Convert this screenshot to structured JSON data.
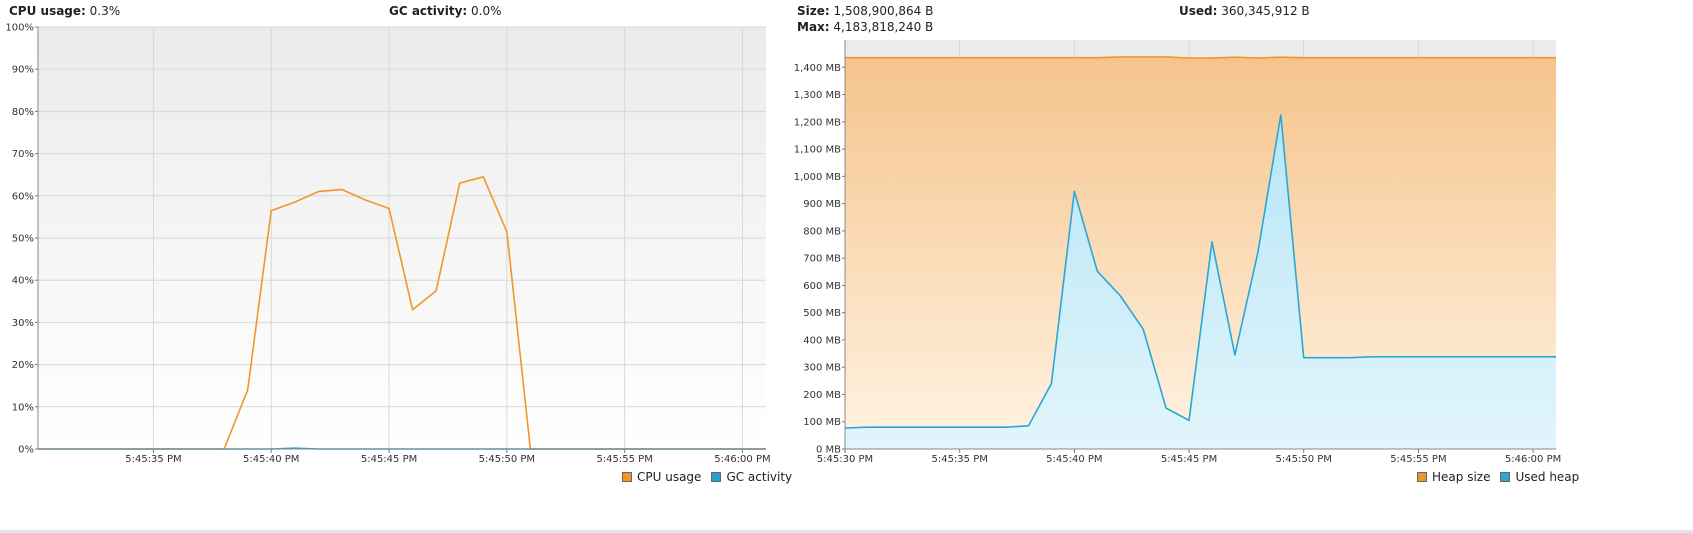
{
  "cpu_panel": {
    "cpu_label": "CPU usage:",
    "cpu_value": "0.3%",
    "gc_label": "GC activity:",
    "gc_value": "0.0%",
    "legend": {
      "cpu": "CPU usage",
      "gc": "GC activity"
    },
    "colors": {
      "cpu": "#f0962a",
      "gc": "#2a9fd0"
    }
  },
  "heap_panel": {
    "size_label": "Size:",
    "size_value": "1,508,900,864 B",
    "used_label": "Used:",
    "used_value": "360,345,912 B",
    "max_label": "Max:",
    "max_value": "4,183,818,240 B",
    "legend": {
      "size": "Heap size",
      "used": "Used heap"
    },
    "colors": {
      "size": "#f0962a",
      "used": "#2aa7d6"
    }
  },
  "chart_data": [
    {
      "type": "line",
      "x_tick_labels": [
        "5:45:35 PM",
        "5:45:40 PM",
        "5:45:45 PM",
        "5:45:50 PM",
        "5:45:55 PM",
        "5:46:00 PM"
      ],
      "x_ticks_sec": [
        35,
        40,
        45,
        50,
        55,
        60
      ],
      "xlim_sec": [
        30.1,
        61.0
      ],
      "y_tick_labels": [
        "0%",
        "10%",
        "20%",
        "30%",
        "40%",
        "50%",
        "60%",
        "70%",
        "80%",
        "90%",
        "100%"
      ],
      "ylim": [
        0,
        100
      ],
      "grid": true,
      "legend_position": "bottom-right",
      "series": [
        {
          "name": "CPU usage",
          "x_sec": [
            30.1,
            37,
            38,
            39,
            40,
            41,
            42,
            43,
            44,
            45,
            46,
            47,
            48,
            49,
            50,
            51,
            61.0
          ],
          "values": [
            0,
            0,
            0,
            14,
            56.5,
            58.5,
            61,
            61.5,
            59,
            57,
            33,
            37.5,
            63,
            64.5,
            51.5,
            0,
            0
          ]
        },
        {
          "name": "GC activity",
          "x_sec": [
            30.1,
            40,
            41,
            42,
            61.0
          ],
          "values": [
            0,
            0,
            0.2,
            0,
            0
          ]
        }
      ]
    },
    {
      "type": "area",
      "x_tick_labels": [
        "5:45:30 PM",
        "5:45:35 PM",
        "5:45:40 PM",
        "5:45:45 PM",
        "5:45:50 PM",
        "5:45:55 PM",
        "5:46:00 PM"
      ],
      "x_ticks_sec": [
        30,
        35,
        40,
        45,
        50,
        55,
        60
      ],
      "xlim_sec": [
        30.0,
        61.0
      ],
      "y_tick_labels": [
        "0 MB",
        "100 MB",
        "200 MB",
        "300 MB",
        "400 MB",
        "500 MB",
        "600 MB",
        "700 MB",
        "800 MB",
        "900 MB",
        "1,000 MB",
        "1,100 MB",
        "1,200 MB",
        "1,300 MB",
        "1,400 MB"
      ],
      "ylim": [
        0,
        1500
      ],
      "grid": true,
      "legend_position": "bottom-right",
      "series": [
        {
          "name": "Heap size",
          "x_sec": [
            30.0,
            40,
            41,
            42,
            43,
            44,
            45,
            46,
            47,
            48,
            49,
            50,
            61.0
          ],
          "values": [
            1435,
            1435,
            1435,
            1438,
            1438,
            1438,
            1434,
            1434,
            1437,
            1434,
            1437,
            1435,
            1435
          ]
        },
        {
          "name": "Used heap",
          "x_sec": [
            30.0,
            31,
            36,
            37,
            38,
            39,
            40,
            41,
            42,
            43,
            44,
            45,
            46,
            47,
            48,
            49,
            50,
            51,
            52,
            53,
            54,
            61.0
          ],
          "values": [
            77,
            80,
            80,
            80,
            85,
            240,
            945,
            652,
            562,
            440,
            150,
            105,
            760,
            345,
            720,
            1225,
            335,
            335,
            335,
            338,
            338,
            338
          ]
        }
      ]
    }
  ]
}
